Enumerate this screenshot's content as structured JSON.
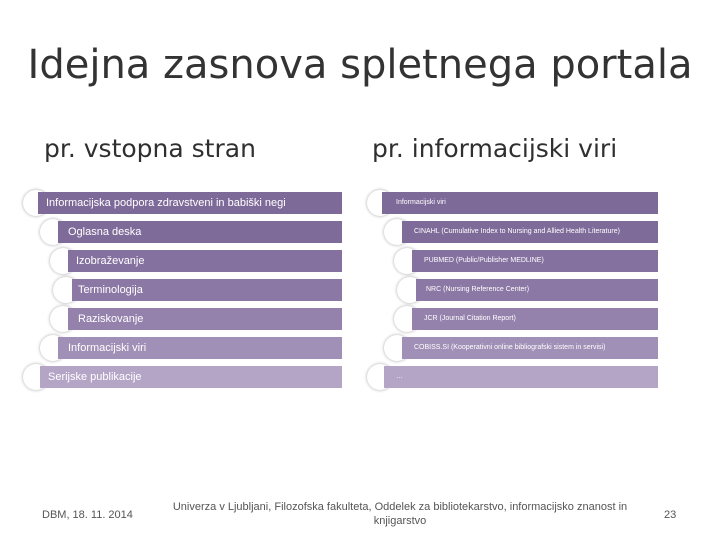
{
  "slide": {
    "title": "Idejna zasnova spletnega portala",
    "left_heading": "pr. vstopna stran",
    "right_heading": "pr. informacijski viri",
    "left_items": [
      "Informacijska podpora zdravstveni in babiški negi",
      "Oglasna deska",
      "Izobraževanje",
      "Terminologija",
      "Raziskovanje",
      "Informacijski viri",
      "Serijske publikacije"
    ],
    "right_items": [
      "Informacijski viri",
      "CINAHL (Cumulative Index to Nursing and Allied Health Literature)",
      "PUBMED (Public/Publisher MEDLINE)",
      "NRC (Nursing Reference Center)",
      "JCR (Journal Citation Report)",
      "COBISS.SI (Kooperativni online bibliografski sistem in servisi)",
      "…"
    ],
    "footer_left": "DBM, 18. 11. 2014",
    "footer_center": "Univerza v Ljubljani, Filozofska fakulteta, Oddelek za bibliotekarstvo, informacijsko znanost in knjigarstvo",
    "page_number": "23"
  },
  "colors": {
    "bar_dark": "#7e6a99",
    "bar_mid": "#8e7aa6",
    "bar_light": "#a896bc",
    "bar_pale": "#b9aacb"
  }
}
